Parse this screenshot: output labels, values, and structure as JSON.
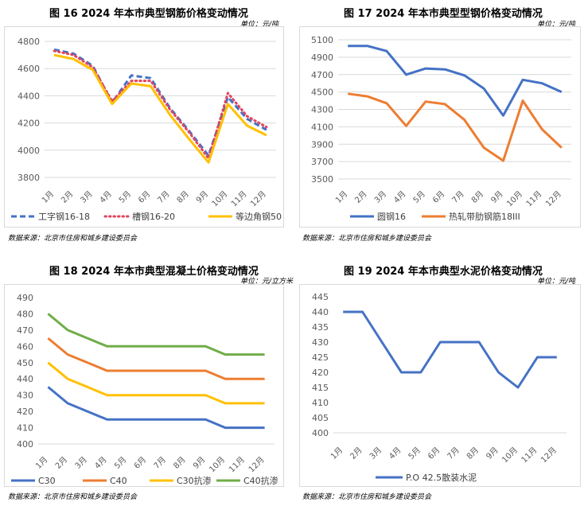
{
  "chart_data": [
    {
      "type": "line",
      "title": "图 16   2024 年本市典型钢筋价格变动情况",
      "unit": "单位：元/吨",
      "source": "数据来源：北京市住房和城乡建设委员会",
      "categories": [
        "1月",
        "2月",
        "3月",
        "4月",
        "5月",
        "6月",
        "7月",
        "8月",
        "9月",
        "10月",
        "11月",
        "12月"
      ],
      "ylim": [
        3800,
        4800
      ],
      "yticks": [
        3800,
        4000,
        4200,
        4400,
        4600,
        4800
      ],
      "grid": true,
      "legend_position": "bottom",
      "series": [
        {
          "name": "工字钢16-18",
          "style": "dashed",
          "color": "#4472c4",
          "values": [
            4740,
            4710,
            4620,
            4350,
            4550,
            4530,
            4310,
            4140,
            3960,
            4390,
            4230,
            4150
          ]
        },
        {
          "name": "槽钢16-20",
          "style": "dotted",
          "color": "#e0455f",
          "values": [
            4730,
            4700,
            4610,
            4360,
            4510,
            4510,
            4300,
            4130,
            3940,
            4420,
            4250,
            4170
          ]
        },
        {
          "name": "等边角钢50",
          "style": "solid",
          "color": "#ffc000",
          "values": [
            4700,
            4670,
            4590,
            4340,
            4490,
            4470,
            4260,
            4080,
            3910,
            4340,
            4180,
            4110
          ]
        }
      ]
    },
    {
      "type": "line",
      "title": "图 17   2024 年本市典型型钢价格变动情况",
      "unit": "单位：元/吨",
      "source": "数据来源：北京市住房和城乡建设委员会",
      "categories": [
        "1月",
        "2月",
        "3月",
        "4月",
        "5月",
        "6月",
        "7月",
        "8月",
        "9月",
        "10月",
        "11月",
        "12月"
      ],
      "ylim": [
        3500,
        5100
      ],
      "yticks": [
        3500,
        3700,
        3900,
        4100,
        4300,
        4500,
        4700,
        4900,
        5100
      ],
      "grid": true,
      "legend_position": "bottom",
      "series": [
        {
          "name": "圆钢16",
          "style": "solid",
          "color": "#4472c4",
          "values": [
            5030,
            5030,
            4970,
            4700,
            4770,
            4760,
            4690,
            4540,
            4230,
            4640,
            4600,
            4500
          ]
        },
        {
          "name": "热轧带肋钢筋18III",
          "style": "solid",
          "color": "#ed7d31",
          "values": [
            4480,
            4450,
            4370,
            4110,
            4390,
            4360,
            4180,
            3860,
            3710,
            4400,
            4070,
            3860
          ]
        }
      ]
    },
    {
      "type": "line",
      "title": "图 18   2024 年本市典型混凝土价格变动情况",
      "unit": "单位：元/立方米",
      "source": "数据来源：北京市住房和城乡建设委员会",
      "categories": [
        "1月",
        "2月",
        "3月",
        "4月",
        "5月",
        "6月",
        "7月",
        "8月",
        "9月",
        "10月",
        "11月",
        "12月"
      ],
      "ylim": [
        400,
        490
      ],
      "yticks": [
        400,
        410,
        420,
        430,
        440,
        450,
        460,
        470,
        480,
        490
      ],
      "grid": false,
      "legend_position": "bottom",
      "series": [
        {
          "name": "C30",
          "style": "solid",
          "color": "#4472c4",
          "values": [
            435,
            425,
            420,
            415,
            415,
            415,
            415,
            415,
            415,
            410,
            410,
            410
          ]
        },
        {
          "name": "C40",
          "style": "solid",
          "color": "#ed7d31",
          "values": [
            465,
            455,
            450,
            445,
            445,
            445,
            445,
            445,
            445,
            440,
            440,
            440
          ]
        },
        {
          "name": "C30抗渗",
          "style": "solid",
          "color": "#ffc000",
          "values": [
            450,
            440,
            435,
            430,
            430,
            430,
            430,
            430,
            430,
            425,
            425,
            425
          ]
        },
        {
          "name": "C40抗渗",
          "style": "solid",
          "color": "#70ad47",
          "values": [
            480,
            470,
            465,
            460,
            460,
            460,
            460,
            460,
            460,
            455,
            455,
            455
          ]
        }
      ]
    },
    {
      "type": "line",
      "title": "图 19   2024 年本市典型水泥价格变动情况",
      "unit": "单位：元/吨",
      "source": "数据来源：北京市住房和城乡建设委员会",
      "categories": [
        "1月",
        "2月",
        "3月",
        "4月",
        "5月",
        "6月",
        "7月",
        "8月",
        "9月",
        "10月",
        "11月",
        "12月"
      ],
      "ylim": [
        400,
        445
      ],
      "yticks": [
        400,
        405,
        410,
        415,
        420,
        425,
        430,
        435,
        440,
        445
      ],
      "grid": false,
      "legend_position": "bottom",
      "series": [
        {
          "name": "P.O 42.5散装水泥",
          "style": "solid",
          "color": "#4472c4",
          "values": [
            440,
            440,
            430,
            420,
            420,
            430,
            430,
            430,
            420,
            415,
            425,
            425
          ]
        }
      ]
    }
  ]
}
